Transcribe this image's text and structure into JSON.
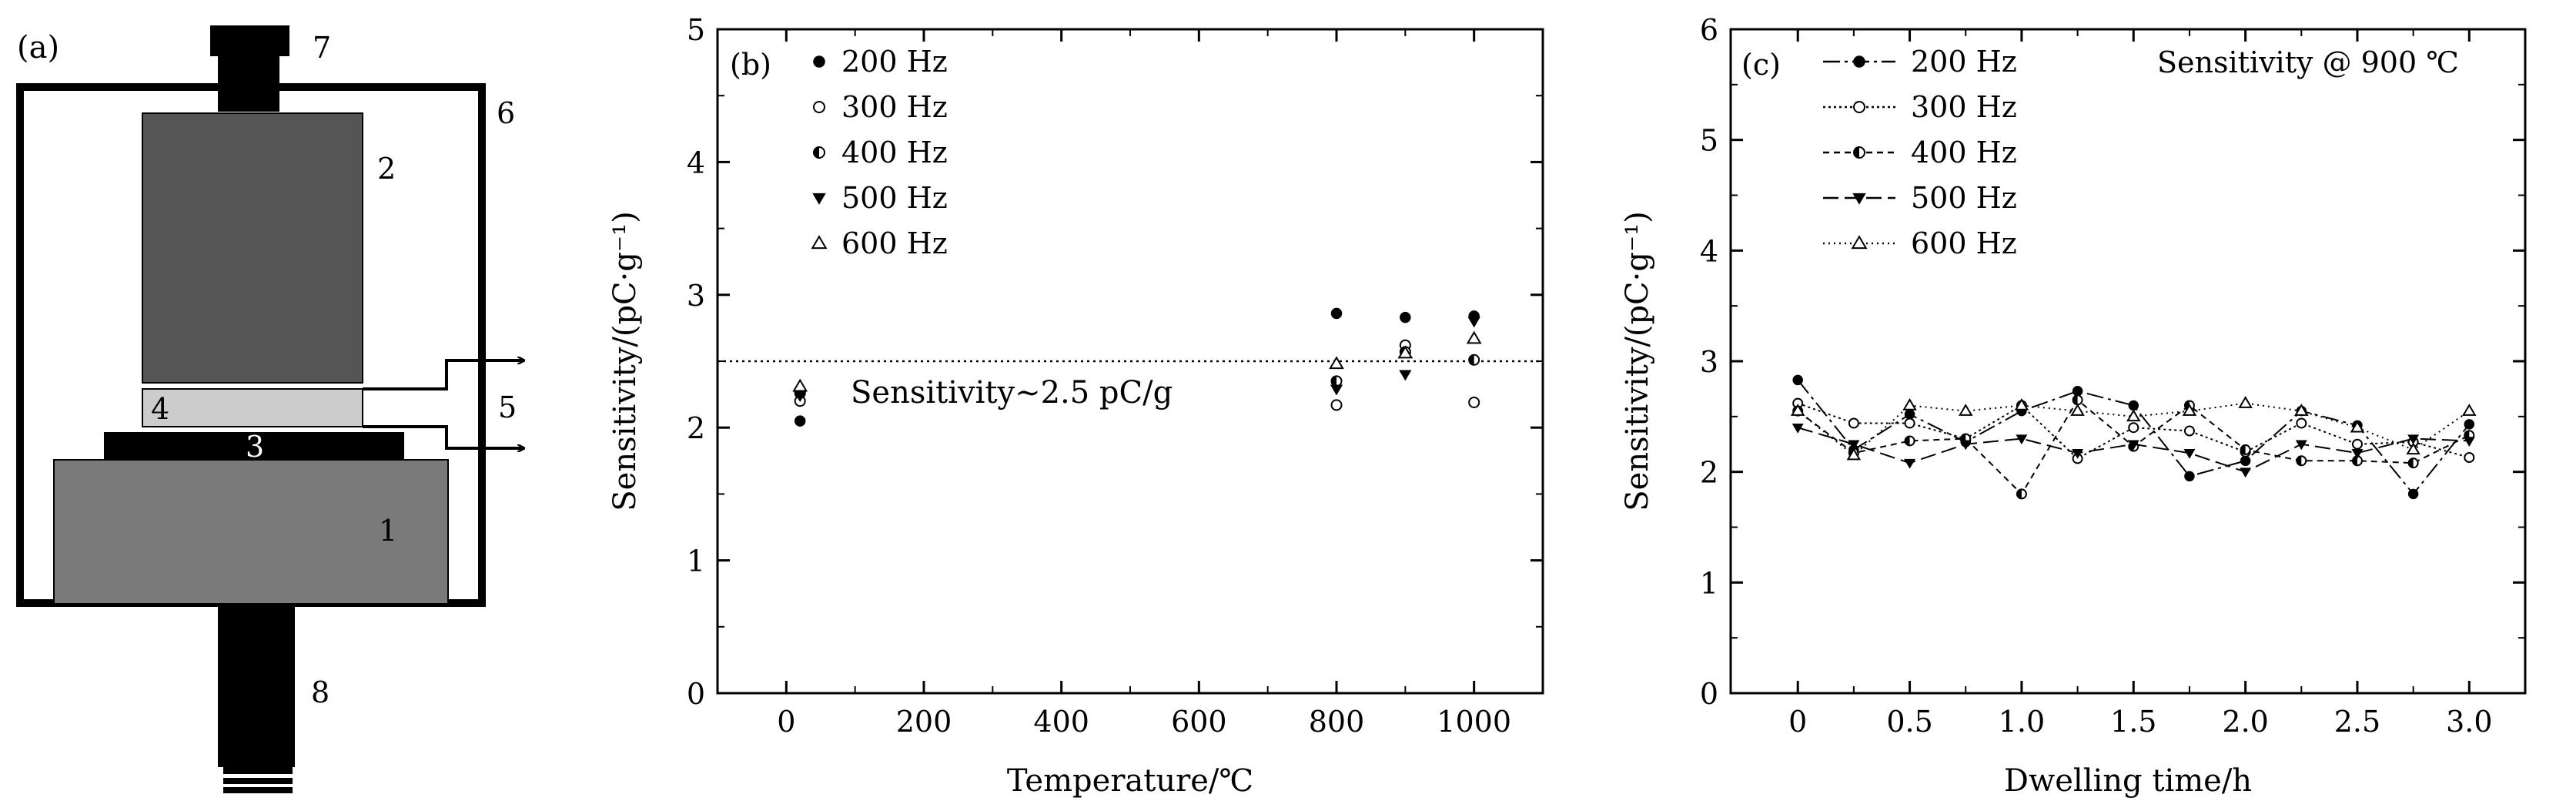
{
  "panel_a": {
    "panel_label": "(a)",
    "part_labels": [
      "1",
      "2",
      "3",
      "4",
      "5",
      "6",
      "7",
      "8"
    ]
  },
  "chart_data": [
    {
      "type": "scatter",
      "panel_label": "(b)",
      "xlabel": "Temperature/℃",
      "ylabel": "Sensitivity/(pC·g⁻¹)",
      "xlim": [
        -100,
        1100
      ],
      "ylim": [
        0,
        5
      ],
      "xticks": [
        0,
        200,
        400,
        600,
        800,
        1000
      ],
      "yticks": [
        0,
        1,
        2,
        3,
        4,
        5
      ],
      "reference_line": {
        "y": 2.5,
        "label": "Sensitivity∼2.5 pC/g"
      },
      "series": [
        {
          "name": "200 Hz",
          "marker": "filled-circle",
          "x": [
            20,
            800,
            900,
            1000
          ],
          "values": [
            2.05,
            2.86,
            2.83,
            2.84
          ]
        },
        {
          "name": "300 Hz",
          "marker": "open-circle",
          "x": [
            20,
            800,
            900,
            1000
          ],
          "values": [
            2.2,
            2.17,
            2.62,
            2.19
          ]
        },
        {
          "name": "400 Hz",
          "marker": "half-circle",
          "x": [
            20,
            800,
            900,
            1000
          ],
          "values": [
            2.26,
            2.35,
            2.57,
            2.51
          ]
        },
        {
          "name": "500 Hz",
          "marker": "filled-triangle-down",
          "x": [
            20,
            800,
            900,
            1000
          ],
          "values": [
            2.24,
            2.29,
            2.4,
            2.8
          ]
        },
        {
          "name": "600 Hz",
          "marker": "open-triangle-up",
          "x": [
            20,
            800,
            900,
            1000
          ],
          "values": [
            2.31,
            2.48,
            2.56,
            2.67
          ]
        }
      ]
    },
    {
      "type": "line",
      "panel_label": "(c)",
      "annotation": "Sensitivity @ 900 ℃",
      "xlabel": "Dwelling time/h",
      "ylabel": "Sensitivity/(pC·g⁻¹)",
      "xlim": [
        -0.3,
        3.25
      ],
      "ylim": [
        0,
        6
      ],
      "xticks": [
        "0",
        "0.5",
        "1.0",
        "1.5",
        "2.0",
        "2.5",
        "3.0"
      ],
      "yticks": [
        0,
        1,
        2,
        3,
        4,
        5,
        6
      ],
      "x": [
        0,
        0.25,
        0.5,
        0.75,
        1.0,
        1.25,
        1.5,
        1.75,
        2.0,
        2.25,
        2.5,
        2.75,
        3.0
      ],
      "series": [
        {
          "name": "200 Hz",
          "marker": "filled-circle",
          "dash": "long-dash-dot",
          "values": [
            2.83,
            2.2,
            2.52,
            2.27,
            2.55,
            2.73,
            2.6,
            1.96,
            2.1,
            2.55,
            2.42,
            1.8,
            2.43
          ]
        },
        {
          "name": "300 Hz",
          "marker": "open-circle",
          "dash": "dotted",
          "values": [
            2.62,
            2.44,
            2.44,
            2.3,
            2.6,
            2.12,
            2.4,
            2.37,
            2.18,
            2.44,
            2.25,
            2.27,
            2.13
          ]
        },
        {
          "name": "400 Hz",
          "marker": "half-circle",
          "dash": "dashed",
          "values": [
            2.55,
            2.17,
            2.28,
            2.3,
            1.8,
            2.65,
            2.23,
            2.6,
            2.2,
            2.1,
            2.1,
            2.08,
            2.33
          ]
        },
        {
          "name": "500 Hz",
          "marker": "filled-triangle-down",
          "dash": "long-dash",
          "values": [
            2.4,
            2.25,
            2.08,
            2.25,
            2.3,
            2.17,
            2.25,
            2.17,
            2.0,
            2.25,
            2.17,
            2.3,
            2.28
          ]
        },
        {
          "name": "600 Hz",
          "marker": "open-triangle-up",
          "dash": "fine-dotted",
          "values": [
            2.55,
            2.15,
            2.6,
            2.55,
            2.6,
            2.55,
            2.5,
            2.55,
            2.62,
            2.55,
            2.4,
            2.2,
            2.55
          ]
        }
      ]
    }
  ]
}
